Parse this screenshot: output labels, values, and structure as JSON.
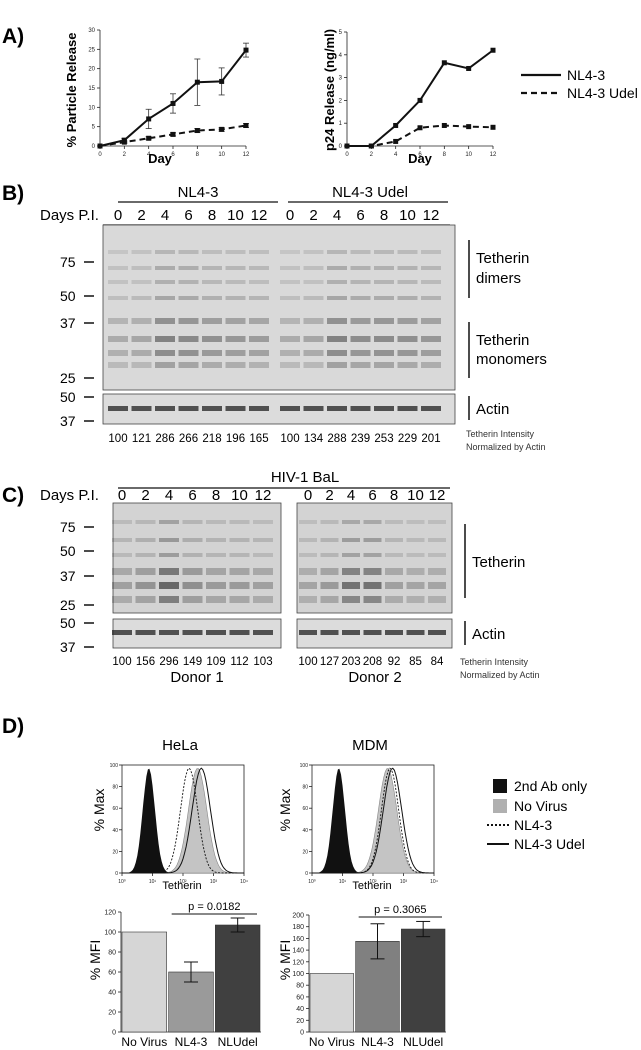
{
  "panels": {
    "a": "A)",
    "b": "B)",
    "c": "C)",
    "d": "D)"
  },
  "chart_data": [
    {
      "type": "line",
      "ylabel": "% Particle Release",
      "xlabel": "Day",
      "x": [
        0,
        2,
        4,
        6,
        8,
        10,
        12
      ],
      "xticks": [
        "0",
        "2",
        "4",
        "6",
        "8",
        "10",
        "12"
      ],
      "yticks": [
        "0",
        "5",
        "10",
        "15",
        "20",
        "25",
        "30"
      ],
      "ylim": [
        0,
        30
      ],
      "series": [
        {
          "name": "NL4-3",
          "values": [
            0,
            1.5,
            7,
            11,
            16.5,
            16.7,
            24.8
          ],
          "err": [
            0,
            0.5,
            2.5,
            2.5,
            6,
            3.5,
            1.8
          ],
          "style": "solid"
        },
        {
          "name": "NL4-3 Udel",
          "values": [
            0,
            1,
            2,
            3,
            4,
            4.3,
            5.3
          ],
          "err": [
            0,
            0.3,
            0.4,
            0.4,
            0.5,
            0.5,
            0.5
          ],
          "style": "dashed"
        }
      ]
    },
    {
      "type": "line",
      "ylabel": "p24 Release (ng/ml)",
      "xlabel": "Day",
      "x": [
        0,
        2,
        4,
        6,
        8,
        10,
        12
      ],
      "xticks": [
        "0",
        "2",
        "4",
        "6",
        "8",
        "10",
        "12"
      ],
      "yticks": [
        "0",
        "1",
        "2",
        "3",
        "4",
        "5"
      ],
      "ylim": [
        0,
        5
      ],
      "series": [
        {
          "name": "NL4-3",
          "values": [
            0,
            0,
            0.9,
            2,
            3.65,
            3.4,
            4.2
          ],
          "style": "solid"
        },
        {
          "name": "NL4-3 Udel",
          "values": [
            0,
            0,
            0.2,
            0.8,
            0.9,
            0.85,
            0.82
          ],
          "style": "dashed"
        }
      ]
    },
    {
      "type": "bar",
      "ylabel": "% MFI",
      "categories": [
        "No Virus",
        "NL4-3",
        "NLUdel"
      ],
      "values": [
        100,
        60,
        107
      ],
      "err": [
        0,
        10,
        7
      ],
      "yticks": [
        "0",
        "20",
        "40",
        "60",
        "80",
        "100",
        "120"
      ],
      "ylim": [
        0,
        120
      ],
      "colors": [
        "#d6d6d6",
        "#9a9a9a",
        "#404040"
      ],
      "pvalue": "p = 0.0182"
    },
    {
      "type": "bar",
      "ylabel": "% MFI",
      "categories": [
        "No Virus",
        "NL4-3",
        "NLUdel"
      ],
      "values": [
        100,
        155,
        176
      ],
      "err": [
        0,
        30,
        13
      ],
      "yticks": [
        "0",
        "20",
        "40",
        "60",
        "80",
        "100",
        "120",
        "140",
        "160",
        "180",
        "200"
      ],
      "ylim": [
        0,
        200
      ],
      "colors": [
        "#d6d6d6",
        "#808080",
        "#404040"
      ],
      "pvalue": "p = 0.3065"
    }
  ],
  "legendA": [
    "NL4-3",
    "NL4-3 Udel"
  ],
  "blotB": {
    "groups": [
      "NL4-3",
      "NL4-3 Udel"
    ],
    "days_label": "Days P.I.",
    "days": [
      "0",
      "2",
      "4",
      "6",
      "8",
      "10",
      "12",
      "0",
      "2",
      "4",
      "6",
      "8",
      "10",
      "12"
    ],
    "mw": [
      "75",
      "50",
      "37",
      "25"
    ],
    "actin_mw": [
      "50",
      "37"
    ],
    "dimers": [
      "Tetherin",
      "dimers"
    ],
    "monomers": [
      "Tetherin",
      "monomers"
    ],
    "actin": "Actin",
    "values": [
      "100",
      "121",
      "286",
      "266",
      "218",
      "196",
      "165",
      "100",
      "134",
      "288",
      "239",
      "253",
      "229",
      "201"
    ],
    "note1": "Tetherin Intensity",
    "note2": "Normalized by Actin"
  },
  "blotC": {
    "title": "HIV-1 BaL",
    "days_label": "Days P.I.",
    "days1": [
      "0",
      "2",
      "4",
      "6",
      "8",
      "10",
      "12"
    ],
    "days2": [
      "0",
      "2",
      "4",
      "6",
      "8",
      "10",
      "12"
    ],
    "mw": [
      "75",
      "50",
      "37",
      "25"
    ],
    "actin_mw": [
      "50",
      "37"
    ],
    "tetherin": "Tetherin",
    "actin": "Actin",
    "values1": [
      "100",
      "156",
      "296",
      "149",
      "109",
      "112",
      "103"
    ],
    "values2": [
      "100",
      "127",
      "203",
      "208",
      "92",
      "85",
      "84"
    ],
    "donor1": "Donor 1",
    "donor2": "Donor 2",
    "note1": "Tetherin Intensity",
    "note2": "Normalized by Actin"
  },
  "flowD": {
    "titles": [
      "HeLa",
      "MDM"
    ],
    "ylabel": "% Max",
    "xlabel": "Tetherin",
    "yticks": [
      "0",
      "20",
      "40",
      "60",
      "80",
      "100"
    ],
    "xticks": [
      "10⁰",
      "10¹",
      "10²",
      "10³",
      "10⁴"
    ],
    "legend": [
      "2nd Ab only",
      "No Virus",
      "NL4-3",
      "NL4-3 Udel"
    ]
  }
}
